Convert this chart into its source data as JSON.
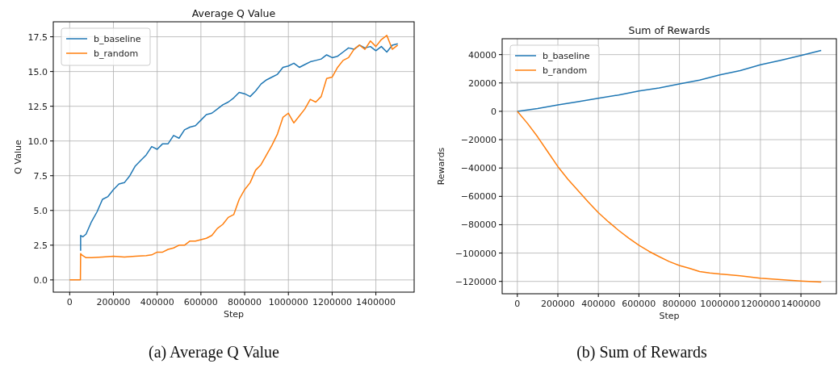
{
  "chart_data": [
    {
      "type": "line",
      "title": "Average Q Value",
      "xlabel": "Step",
      "ylabel": "Q Value",
      "annotations": [
        "(a) Average Q Value"
      ],
      "legend": "top left",
      "grid": true,
      "line_style": "solid",
      "marker": "none",
      "xlim": [
        -75000,
        1575000
      ],
      "xticks": [
        0,
        200000,
        400000,
        600000,
        800000,
        1000000,
        1200000,
        1400000
      ],
      "ylim": [
        -0.88,
        18.58
      ],
      "yticks": [
        {
          "value": 0,
          "label": "0.0"
        },
        {
          "value": 2.5,
          "label": "2.5"
        },
        {
          "value": 5,
          "label": "5.0"
        },
        {
          "value": 7.5,
          "label": "7.5"
        },
        {
          "value": 10,
          "label": "10.0"
        },
        {
          "value": 12.5,
          "label": "12.5"
        },
        {
          "value": 15,
          "label": "15.0"
        },
        {
          "value": 17.5,
          "label": "17.5"
        }
      ],
      "series": [
        {
          "name": "b_baseline",
          "color": "#1f77b4",
          "x": [
            50000,
            50000,
            60000,
            75000,
            100000,
            125000,
            150000,
            175000,
            200000,
            225000,
            250000,
            275000,
            300000,
            325000,
            350000,
            375000,
            400000,
            425000,
            450000,
            475000,
            500000,
            525000,
            550000,
            575000,
            600000,
            625000,
            650000,
            675000,
            700000,
            725000,
            750000,
            775000,
            800000,
            825000,
            850000,
            875000,
            900000,
            925000,
            950000,
            975000,
            1000000,
            1025000,
            1050000,
            1075000,
            1100000,
            1125000,
            1150000,
            1175000,
            1200000,
            1225000,
            1250000,
            1275000,
            1300000,
            1325000,
            1350000,
            1375000,
            1400000,
            1425000,
            1450000,
            1475000,
            1500000
          ],
          "values": [
            2.1,
            3.2,
            3.1,
            3.3,
            4.2,
            4.9,
            5.8,
            6.0,
            6.5,
            6.9,
            7.0,
            7.5,
            8.2,
            8.6,
            9.0,
            9.6,
            9.4,
            9.8,
            9.8,
            10.4,
            10.2,
            10.8,
            11.0,
            11.1,
            11.5,
            11.9,
            12.0,
            12.3,
            12.6,
            12.8,
            13.1,
            13.5,
            13.4,
            13.2,
            13.6,
            14.1,
            14.4,
            14.6,
            14.8,
            15.3,
            15.4,
            15.6,
            15.3,
            15.5,
            15.7,
            15.8,
            15.9,
            16.2,
            16.0,
            16.1,
            16.4,
            16.7,
            16.6,
            16.9,
            16.7,
            16.8,
            16.5,
            16.8,
            16.4,
            16.9,
            17.0
          ]
        },
        {
          "name": "b_random",
          "color": "#ff7f0e",
          "x": [
            0,
            25000,
            49000,
            50000,
            55000,
            75000,
            100000,
            150000,
            200000,
            250000,
            300000,
            350000,
            375000,
            400000,
            425000,
            450000,
            475000,
            500000,
            525000,
            550000,
            575000,
            600000,
            625000,
            650000,
            675000,
            700000,
            725000,
            750000,
            775000,
            800000,
            825000,
            850000,
            875000,
            900000,
            925000,
            950000,
            975000,
            1000000,
            1025000,
            1050000,
            1075000,
            1100000,
            1125000,
            1150000,
            1175000,
            1200000,
            1225000,
            1250000,
            1275000,
            1300000,
            1325000,
            1350000,
            1375000,
            1400000,
            1425000,
            1450000,
            1475000,
            1500000
          ],
          "values": [
            0,
            0,
            0,
            1.9,
            1.8,
            1.6,
            1.6,
            1.65,
            1.7,
            1.65,
            1.7,
            1.75,
            1.8,
            2.0,
            2.0,
            2.2,
            2.3,
            2.5,
            2.5,
            2.8,
            2.8,
            2.9,
            3.0,
            3.2,
            3.7,
            4.0,
            4.5,
            4.7,
            5.8,
            6.5,
            7.0,
            7.9,
            8.3,
            9.0,
            9.7,
            10.5,
            11.7,
            12.0,
            11.3,
            11.8,
            12.3,
            13.0,
            12.8,
            13.2,
            14.5,
            14.6,
            15.3,
            15.8,
            16.0,
            16.6,
            16.9,
            16.6,
            17.2,
            16.8,
            17.3,
            17.6,
            16.6,
            16.9
          ]
        }
      ]
    },
    {
      "type": "line",
      "title": "Sum of Rewards",
      "xlabel": "Step",
      "ylabel": "Rewards",
      "annotations": [
        "(b) Sum of Rewards"
      ],
      "legend": "top left",
      "grid": true,
      "line_style": "solid",
      "marker": "none",
      "xlim": [
        -75000,
        1575000
      ],
      "xticks": [
        0,
        200000,
        400000,
        600000,
        800000,
        1000000,
        1200000,
        1400000
      ],
      "ylim": [
        -128700,
        51200
      ],
      "yticks": [
        {
          "value": -120000,
          "label": "−120000"
        },
        {
          "value": -100000,
          "label": "−100000"
        },
        {
          "value": -80000,
          "label": "−80000"
        },
        {
          "value": -60000,
          "label": "−60000"
        },
        {
          "value": -40000,
          "label": "−40000"
        },
        {
          "value": -20000,
          "label": "−20000"
        },
        0,
        20000,
        40000
      ],
      "series": [
        {
          "name": "b_baseline",
          "color": "#1f77b4",
          "x": [
            0,
            100000,
            200000,
            300000,
            400000,
            500000,
            600000,
            700000,
            800000,
            900000,
            1000000,
            1100000,
            1200000,
            1300000,
            1400000,
            1500000
          ],
          "values": [
            0,
            2000,
            4500,
            6800,
            9200,
            11500,
            14300,
            16500,
            19300,
            22000,
            25700,
            28700,
            32800,
            36000,
            39400,
            43000
          ]
        },
        {
          "name": "b_random",
          "color": "#ff7f0e",
          "x": [
            0,
            50000,
            100000,
            150000,
            200000,
            250000,
            300000,
            350000,
            400000,
            450000,
            500000,
            550000,
            600000,
            650000,
            700000,
            750000,
            800000,
            850000,
            900000,
            950000,
            1000000,
            1100000,
            1200000,
            1300000,
            1400000,
            1500000
          ],
          "values": [
            0,
            -8500,
            -18000,
            -28500,
            -39000,
            -48000,
            -56000,
            -64000,
            -71500,
            -78000,
            -84000,
            -89500,
            -94500,
            -98800,
            -102500,
            -106000,
            -108800,
            -110800,
            -113000,
            -114000,
            -114800,
            -116000,
            -117800,
            -118800,
            -119700,
            -120500
          ]
        }
      ]
    }
  ]
}
